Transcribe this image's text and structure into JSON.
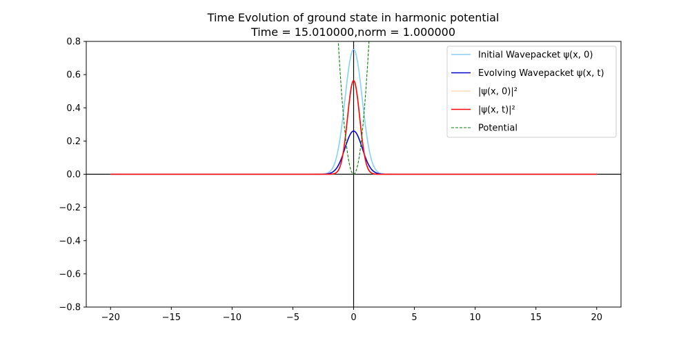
{
  "chart_data": {
    "type": "line",
    "title": "Time Evolution of ground state in harmonic potential",
    "subtitle": "Time = 15.010000,norm =  1.000000",
    "xlabel": "",
    "ylabel": "",
    "xlim": [
      -22,
      22
    ],
    "ylim": [
      -0.8,
      0.8
    ],
    "x_ticks": [
      -20,
      -15,
      -10,
      -5,
      0,
      5,
      10,
      15,
      20
    ],
    "x_tick_labels": [
      "−20",
      "−15",
      "−10",
      "−5",
      "0",
      "5",
      "10",
      "15",
      "20"
    ],
    "y_ticks": [
      -0.8,
      -0.6,
      -0.4,
      -0.2,
      0.0,
      0.2,
      0.4,
      0.6,
      0.8
    ],
    "y_tick_labels": [
      "−0.8",
      "−0.6",
      "−0.4",
      "−0.2",
      "0.0",
      "0.2",
      "0.4",
      "0.6",
      "0.8"
    ],
    "grid": false,
    "legend_position": "top-right",
    "x_range": [
      -20,
      20
    ],
    "series": [
      {
        "name": "Initial Wavepacket ψ(x, 0)",
        "kind": "gaussian",
        "amplitude": 0.751,
        "width": 1.0,
        "color": "#87cefa",
        "style": "solid"
      },
      {
        "name": "Evolving Wavepacket ψ(x, t)",
        "kind": "gaussian",
        "amplitude": 0.26,
        "width": 1.0,
        "color": "#0000cd",
        "style": "solid"
      },
      {
        "name": "|ψ(x, 0)|²",
        "kind": "gaussian",
        "amplitude": 0.564,
        "width": 0.7071,
        "color": "#ffdab9",
        "style": "solid"
      },
      {
        "name": "|ψ(x, t)|²",
        "kind": "gaussian",
        "amplitude": 0.564,
        "width": 0.7071,
        "color": "#ff0000",
        "style": "solid"
      },
      {
        "name": "Potential",
        "kind": "parabola",
        "coefficient": 0.5,
        "color": "#008000",
        "style": "dashed"
      }
    ]
  }
}
